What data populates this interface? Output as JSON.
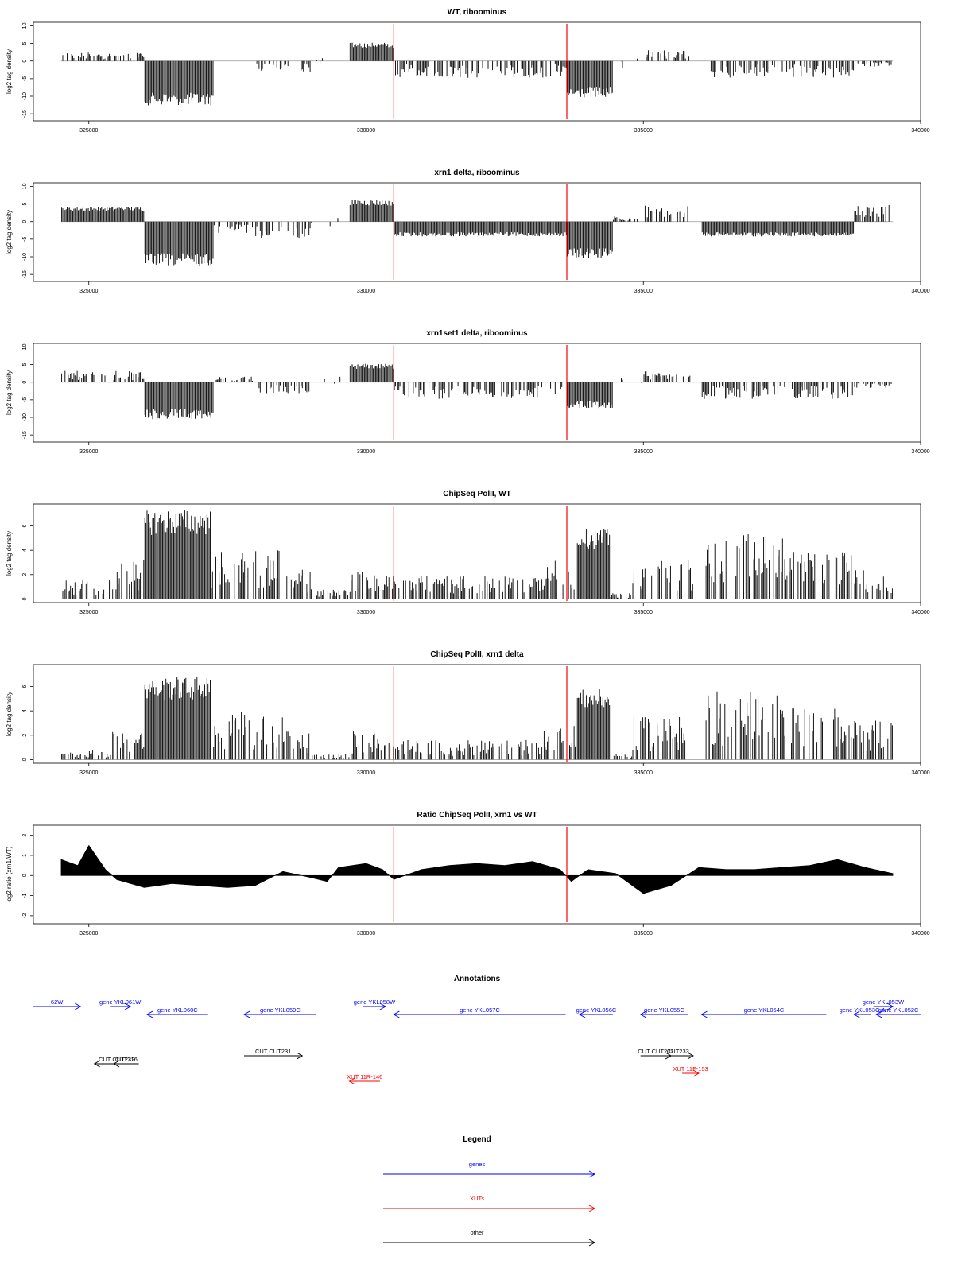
{
  "x_axis": {
    "min": 324000,
    "max": 340000,
    "ticks": [
      325000,
      330000,
      335000,
      340000
    ]
  },
  "track_start": 324500,
  "track_end": 339500,
  "markers": {
    "color": "#ff0000",
    "positions": [
      330500,
      333620
    ]
  },
  "chart_data": [
    {
      "type": "bar",
      "title": "WT, riboominus",
      "ylabel": "log2 tag density",
      "ylim": [
        -17,
        11
      ],
      "yticks": [
        10,
        5,
        0,
        -5,
        -10,
        -15
      ],
      "segments": [
        {
          "x": [
            324500,
            326000
          ],
          "y": 1.5
        },
        {
          "x": [
            326000,
            327250
          ],
          "y": -12
        },
        {
          "x": [
            327250,
            328000
          ],
          "y": 0
        },
        {
          "x": [
            328000,
            329000
          ],
          "y": -2
        },
        {
          "x": [
            329000,
            329700
          ],
          "y": 0
        },
        {
          "x": [
            329700,
            330500
          ],
          "y": 5
        },
        {
          "x": [
            330500,
            333620
          ],
          "y": -3
        },
        {
          "x": [
            333620,
            334450
          ],
          "y": -10
        },
        {
          "x": [
            334450,
            335000
          ],
          "y": 0
        },
        {
          "x": [
            335000,
            335850
          ],
          "y": 2
        },
        {
          "x": [
            336050,
            338800
          ],
          "y": -3
        },
        {
          "x": [
            338800,
            339500
          ],
          "y": -1
        }
      ]
    },
    {
      "type": "bar",
      "title": "xrn1 delta, riboominus",
      "ylabel": "log2 tag density",
      "ylim": [
        -17,
        11
      ],
      "yticks": [
        10,
        5,
        0,
        -5,
        -10,
        -15
      ],
      "segments": [
        {
          "x": [
            324500,
            326000
          ],
          "y": 4
        },
        {
          "x": [
            326000,
            327250
          ],
          "y": -12
        },
        {
          "x": [
            327250,
            328000
          ],
          "y": -2
        },
        {
          "x": [
            328000,
            329000
          ],
          "y": -3
        },
        {
          "x": [
            329000,
            329700
          ],
          "y": 0
        },
        {
          "x": [
            329700,
            330500
          ],
          "y": 6
        },
        {
          "x": [
            330500,
            333620
          ],
          "y": -4
        },
        {
          "x": [
            333620,
            334450
          ],
          "y": -10
        },
        {
          "x": [
            334450,
            335000
          ],
          "y": 1
        },
        {
          "x": [
            335000,
            335850
          ],
          "y": 3
        },
        {
          "x": [
            336050,
            338800
          ],
          "y": -4
        },
        {
          "x": [
            338800,
            339500
          ],
          "y": 3
        }
      ]
    },
    {
      "type": "bar",
      "title": "xrn1set1 delta, riboominus",
      "ylabel": "log2 tag density",
      "ylim": [
        -17,
        11
      ],
      "yticks": [
        10,
        5,
        0,
        -5,
        -10,
        -15
      ],
      "segments": [
        {
          "x": [
            324500,
            326000
          ],
          "y": 2
        },
        {
          "x": [
            326000,
            327250
          ],
          "y": -10
        },
        {
          "x": [
            327250,
            328000
          ],
          "y": 1
        },
        {
          "x": [
            328000,
            329000
          ],
          "y": -2
        },
        {
          "x": [
            329000,
            329700
          ],
          "y": 0
        },
        {
          "x": [
            329700,
            330500
          ],
          "y": 5
        },
        {
          "x": [
            330500,
            333620
          ],
          "y": -3
        },
        {
          "x": [
            333620,
            334450
          ],
          "y": -7
        },
        {
          "x": [
            334450,
            335000
          ],
          "y": 0
        },
        {
          "x": [
            335000,
            335850
          ],
          "y": 2
        },
        {
          "x": [
            336050,
            338800
          ],
          "y": -3
        },
        {
          "x": [
            338800,
            339500
          ],
          "y": -1
        }
      ]
    },
    {
      "type": "bar",
      "title": "ChipSeq PolII, WT",
      "ylabel": "log2 tag density",
      "ylim": [
        -0.3,
        7.8
      ],
      "yticks": [
        0,
        2,
        4,
        6
      ],
      "segments": [
        {
          "x": [
            324500,
            325400
          ],
          "y": 1
        },
        {
          "x": [
            325400,
            326000
          ],
          "y": 2
        },
        {
          "x": [
            326000,
            327200
          ],
          "y": 7
        },
        {
          "x": [
            327200,
            328500
          ],
          "y": 2.5
        },
        {
          "x": [
            328500,
            329000
          ],
          "y": 1.5
        },
        {
          "x": [
            329000,
            329700
          ],
          "y": 0.5
        },
        {
          "x": [
            329700,
            330300
          ],
          "y": 1.5
        },
        {
          "x": [
            330300,
            333200
          ],
          "y": 1.2
        },
        {
          "x": [
            333200,
            333800
          ],
          "y": 2
        },
        {
          "x": [
            333800,
            334400
          ],
          "y": 5.5
        },
        {
          "x": [
            334400,
            334800
          ],
          "y": 0.3
        },
        {
          "x": [
            334800,
            335900
          ],
          "y": 2.3
        },
        {
          "x": [
            336100,
            337600
          ],
          "y": 3.5
        },
        {
          "x": [
            337600,
            338800
          ],
          "y": 2.5
        },
        {
          "x": [
            338800,
            339500
          ],
          "y": 1.5
        }
      ]
    },
    {
      "type": "bar",
      "title": "ChipSeq PolII, xrn1 delta",
      "ylabel": "log2 tag density",
      "ylim": [
        -0.3,
        7.8
      ],
      "yticks": [
        0,
        2,
        4,
        6
      ],
      "segments": [
        {
          "x": [
            324500,
            325400
          ],
          "y": 0.5
        },
        {
          "x": [
            325400,
            326000
          ],
          "y": 1.5
        },
        {
          "x": [
            326000,
            327200
          ],
          "y": 6.5
        },
        {
          "x": [
            327200,
            328500
          ],
          "y": 2.5
        },
        {
          "x": [
            328500,
            329000
          ],
          "y": 1.5
        },
        {
          "x": [
            329000,
            329700
          ],
          "y": 0.3
        },
        {
          "x": [
            329700,
            330300
          ],
          "y": 1.5
        },
        {
          "x": [
            330300,
            333200
          ],
          "y": 1
        },
        {
          "x": [
            333200,
            333800
          ],
          "y": 1.8
        },
        {
          "x": [
            333800,
            334400
          ],
          "y": 5.5
        },
        {
          "x": [
            334400,
            334800
          ],
          "y": 0.3
        },
        {
          "x": [
            334800,
            335900
          ],
          "y": 2.2
        },
        {
          "x": [
            336100,
            337600
          ],
          "y": 3.6
        },
        {
          "x": [
            337600,
            338800
          ],
          "y": 2.8
        },
        {
          "x": [
            338800,
            339500
          ],
          "y": 2
        }
      ]
    },
    {
      "type": "area",
      "title": "Ratio ChipSeq PolII, xrn1 vs WT",
      "ylabel": "log2 ratio (xrn1/WT)",
      "ylim": [
        -2.4,
        2.5
      ],
      "yticks": [
        2,
        1,
        0,
        -1,
        -2
      ],
      "x": [
        324500,
        324800,
        325000,
        325300,
        325500,
        326000,
        326500,
        327000,
        327500,
        328000,
        328500,
        329000,
        329300,
        329500,
        330000,
        330300,
        330500,
        331000,
        331500,
        332000,
        332500,
        333000,
        333500,
        333700,
        334000,
        334500,
        335000,
        335500,
        336000,
        336500,
        337000,
        337500,
        338000,
        338500,
        339000,
        339500
      ],
      "y": [
        0.8,
        0.5,
        1.5,
        0.3,
        -0.2,
        -0.6,
        -0.4,
        -0.5,
        -0.6,
        -0.5,
        0.2,
        -0.1,
        -0.3,
        0.4,
        0.6,
        0.3,
        -0.2,
        0.3,
        0.5,
        0.6,
        0.5,
        0.7,
        0.3,
        -0.3,
        0.3,
        0.1,
        -0.9,
        -0.5,
        0.4,
        0.3,
        0.3,
        0.4,
        0.5,
        0.8,
        0.4,
        0.1
      ]
    }
  ],
  "annotations": {
    "title": "Annotations",
    "colors": {
      "gene": "#0000ff",
      "xut": "#ff0000",
      "other": "#000000"
    },
    "features": [
      {
        "label": "62W",
        "kind": "gene",
        "dir": 1,
        "start": 324000,
        "end": 324850,
        "row": 1
      },
      {
        "label": "gene YKL061W",
        "kind": "gene",
        "dir": 1,
        "start": 325380,
        "end": 325750,
        "row": 1
      },
      {
        "label": "gene YKL060C",
        "kind": "gene",
        "dir": -1,
        "start": 326050,
        "end": 327150,
        "row": 2
      },
      {
        "label": "gene YKL059C",
        "kind": "gene",
        "dir": -1,
        "start": 327800,
        "end": 329100,
        "row": 2
      },
      {
        "label": "gene YKL058W",
        "kind": "gene",
        "dir": 1,
        "start": 329950,
        "end": 330350,
        "row": 1
      },
      {
        "label": "gene YKL057C",
        "kind": "gene",
        "dir": -1,
        "start": 330500,
        "end": 333600,
        "row": 2
      },
      {
        "label": "gene YKL056C",
        "kind": "gene",
        "dir": -1,
        "start": 333850,
        "end": 334450,
        "row": 2
      },
      {
        "label": "gene YKL055C",
        "kind": "gene",
        "dir": -1,
        "start": 334950,
        "end": 335800,
        "row": 2
      },
      {
        "label": "gene YKL054C",
        "kind": "gene",
        "dir": -1,
        "start": 336050,
        "end": 338300,
        "row": 2
      },
      {
        "label": "gene YKL053W",
        "kind": "gene",
        "dir": 1,
        "start": 339150,
        "end": 339500,
        "row": 1
      },
      {
        "label": "gene YKL053C-A",
        "kind": "gene",
        "dir": -1,
        "start": 338800,
        "end": 339100,
        "row": 2
      },
      {
        "label": "gene YKL052C",
        "kind": "gene",
        "dir": -1,
        "start": 339200,
        "end": 340000,
        "row": 2
      },
      {
        "label": "CUT CUT231",
        "kind": "other",
        "dir": 1,
        "start": 327800,
        "end": 328850,
        "row": 3
      },
      {
        "label": "CUT CUT232",
        "kind": "other",
        "dir": -1,
        "start": 325100,
        "end": 325900,
        "row": 4
      },
      {
        "label": "CUT716",
        "kind": "other",
        "dir": -1,
        "start": 325450,
        "end": 325900,
        "row": 4
      },
      {
        "label": "CUT CUT232",
        "kind": "other",
        "dir": 1,
        "start": 334950,
        "end": 335500,
        "row": 3
      },
      {
        "label": "CUT233",
        "kind": "other",
        "dir": 1,
        "start": 335350,
        "end": 335900,
        "row": 3
      },
      {
        "label": "XUT 11R-146",
        "kind": "xut",
        "dir": -1,
        "start": 329700,
        "end": 330250,
        "row": 6
      },
      {
        "label": "XUT 11F-153",
        "kind": "xut",
        "dir": 1,
        "start": 335700,
        "end": 336000,
        "row": 5
      }
    ]
  },
  "legend": {
    "title": "Legend",
    "items": [
      {
        "label": "genes",
        "color": "#0000ff"
      },
      {
        "label": "XUTs",
        "color": "#ff0000"
      },
      {
        "label": "other",
        "color": "#000000"
      }
    ]
  }
}
